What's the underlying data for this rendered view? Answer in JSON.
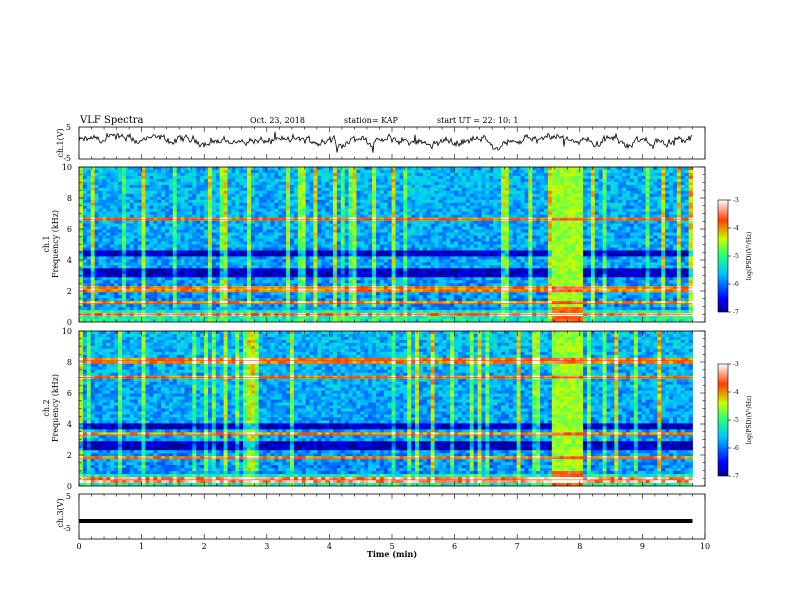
{
  "header": {
    "title": "VLF Spectra",
    "date": "Oct. 23, 2018",
    "station": "station= KAP",
    "start": "start  UT =   22: 10: 1"
  },
  "chart_data": [
    {
      "type": "line",
      "ylabel": "ch.1(V)",
      "ylim": [
        -5,
        5
      ],
      "ytick_labels": [
        "5",
        "-5"
      ],
      "description_values": "noisy waveform fluctuating roughly between -2 and +3 V over 0-9.8 min"
    },
    {
      "type": "heatmap",
      "ylabel": "ch.1\nFrequency (kHz)",
      "ylabel_line1": "ch.1",
      "ylabel_line2": "Frequency (kHz)",
      "ylim": [
        0,
        10
      ],
      "ytick_labels": [
        "0",
        "2",
        "4",
        "6",
        "8",
        "10"
      ],
      "colorbar": {
        "label": "log(PSD)(V²/Hz)",
        "range": [
          -7,
          -3
        ],
        "tick_labels": [
          "-3",
          "-4",
          "-5",
          "-6",
          "-7"
        ]
      },
      "features": {
        "dark_bands_khz": [
          [
            2.8,
            3.4
          ],
          [
            4.2,
            4.6
          ]
        ],
        "red_lines_khz": [
          0.5,
          1.2,
          2.0,
          2.2,
          6.6
        ],
        "strong_event_min": [
          7.5,
          8.05
        ]
      }
    },
    {
      "type": "heatmap",
      "ylabel_line1": "ch.2",
      "ylabel_line2": "Frequency (kHz)",
      "ylim": [
        0,
        10
      ],
      "ytick_labels": [
        "0",
        "2",
        "4",
        "6",
        "8",
        "10"
      ],
      "colorbar": {
        "label": "log(PSD)(V²/Hz)",
        "range": [
          -7,
          -3
        ],
        "tick_labels": [
          "-3",
          "-4",
          "-5",
          "-6",
          "-7"
        ]
      },
      "features": {
        "dark_bands_khz": [
          [
            2.3,
            2.9
          ],
          [
            3.6,
            4.0
          ]
        ],
        "red_lines_khz": [
          0.4,
          1.8,
          3.3,
          7.0,
          8.1
        ],
        "strong_event_min": [
          7.5,
          8.05
        ]
      }
    },
    {
      "type": "line",
      "ylabel": "ch.3(V)",
      "ylim": [
        -5,
        5
      ],
      "ytick_labels": [
        "5",
        "-5"
      ],
      "constant_value": -1.0,
      "x_range_min": [
        0,
        9.8
      ]
    }
  ],
  "xaxis": {
    "label": "Time (min)",
    "range": [
      0,
      10
    ],
    "tick_labels": [
      "0",
      "1",
      "2",
      "3",
      "4",
      "5",
      "6",
      "7",
      "8",
      "9",
      "10"
    ]
  }
}
